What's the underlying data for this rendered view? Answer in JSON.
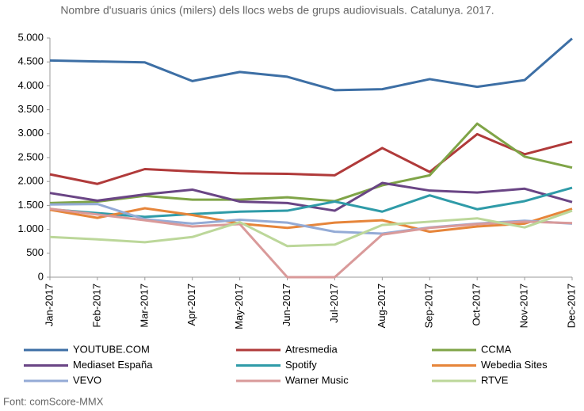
{
  "chart_data": {
    "type": "line",
    "title": "Nombre d'usuaris únics (milers) dels llocs webs de grups audiovisuals. Catalunya. 2017.",
    "source": "Font: comScore-MMX",
    "categories": [
      "Jan-2017",
      "Feb-2017",
      "Mar-2017",
      "Apr-2017",
      "May-2017",
      "Jun-2017",
      "Jul-2017",
      "Aug-2017",
      "Sep-2017",
      "Oct-2017",
      "Nov-2017",
      "Dec-2017"
    ],
    "ylim": [
      0,
      5000
    ],
    "yticks": [
      0,
      500,
      {
        "value": 1000,
        "label": "1.000"
      },
      {
        "value": 1500,
        "label": "1.500"
      },
      {
        "value": 2000,
        "label": "2.000"
      },
      {
        "value": 2500,
        "label": "2.500"
      },
      {
        "value": 3000,
        "label": "3.000"
      },
      {
        "value": 3500,
        "label": "3.500"
      },
      {
        "value": 4000,
        "label": "4.000"
      },
      {
        "value": 4500,
        "label": "4.500"
      },
      {
        "value": 5000,
        "label": "5.000"
      }
    ],
    "grid": false,
    "legend": "bottom",
    "series": [
      {
        "name": "YOUTUBE.COM",
        "color": "#3d6fa5",
        "values": [
          4530,
          4510,
          4490,
          4100,
          4290,
          4190,
          3910,
          3930,
          4140,
          3980,
          4120,
          4990
        ]
      },
      {
        "name": "Atresmedia",
        "color": "#b03a3a",
        "values": [
          2150,
          1950,
          2260,
          2210,
          2170,
          2160,
          2130,
          2700,
          2200,
          2990,
          2570,
          2830
        ]
      },
      {
        "name": "CCMA",
        "color": "#7fa447",
        "values": [
          1550,
          1580,
          1700,
          1620,
          1620,
          1670,
          1590,
          1920,
          2130,
          3210,
          2520,
          2290
        ]
      },
      {
        "name": "Mediaset España",
        "color": "#6a4585",
        "values": [
          1760,
          1600,
          1730,
          1830,
          1580,
          1550,
          1390,
          1970,
          1810,
          1770,
          1850,
          1570
        ]
      },
      {
        "name": "Spotify",
        "color": "#2f9ba8",
        "values": [
          1420,
          1340,
          1260,
          1320,
          1370,
          1390,
          1580,
          1370,
          1710,
          1420,
          1590,
          1870
        ]
      },
      {
        "name": "Webedia Sites",
        "color": "#e6853a",
        "values": [
          1410,
          1240,
          1440,
          1300,
          1120,
          1030,
          1140,
          1190,
          950,
          1060,
          1120,
          1430
        ]
      },
      {
        "name": "VEVO",
        "color": "#94abd6",
        "values": [
          1520,
          1530,
          1210,
          1120,
          1200,
          1140,
          950,
          910,
          1040,
          1120,
          1180,
          1120
        ]
      },
      {
        "name": "Warner Music",
        "color": "#d99a9a",
        "values": [
          1430,
          1310,
          1190,
          1060,
          1110,
          0,
          0,
          890,
          1030,
          1110,
          1160,
          1130
        ]
      },
      {
        "name": "RTVE",
        "color": "#bcd79a",
        "values": [
          840,
          790,
          730,
          840,
          1150,
          650,
          680,
          1090,
          1160,
          1230,
          1040,
          1390
        ]
      }
    ]
  }
}
